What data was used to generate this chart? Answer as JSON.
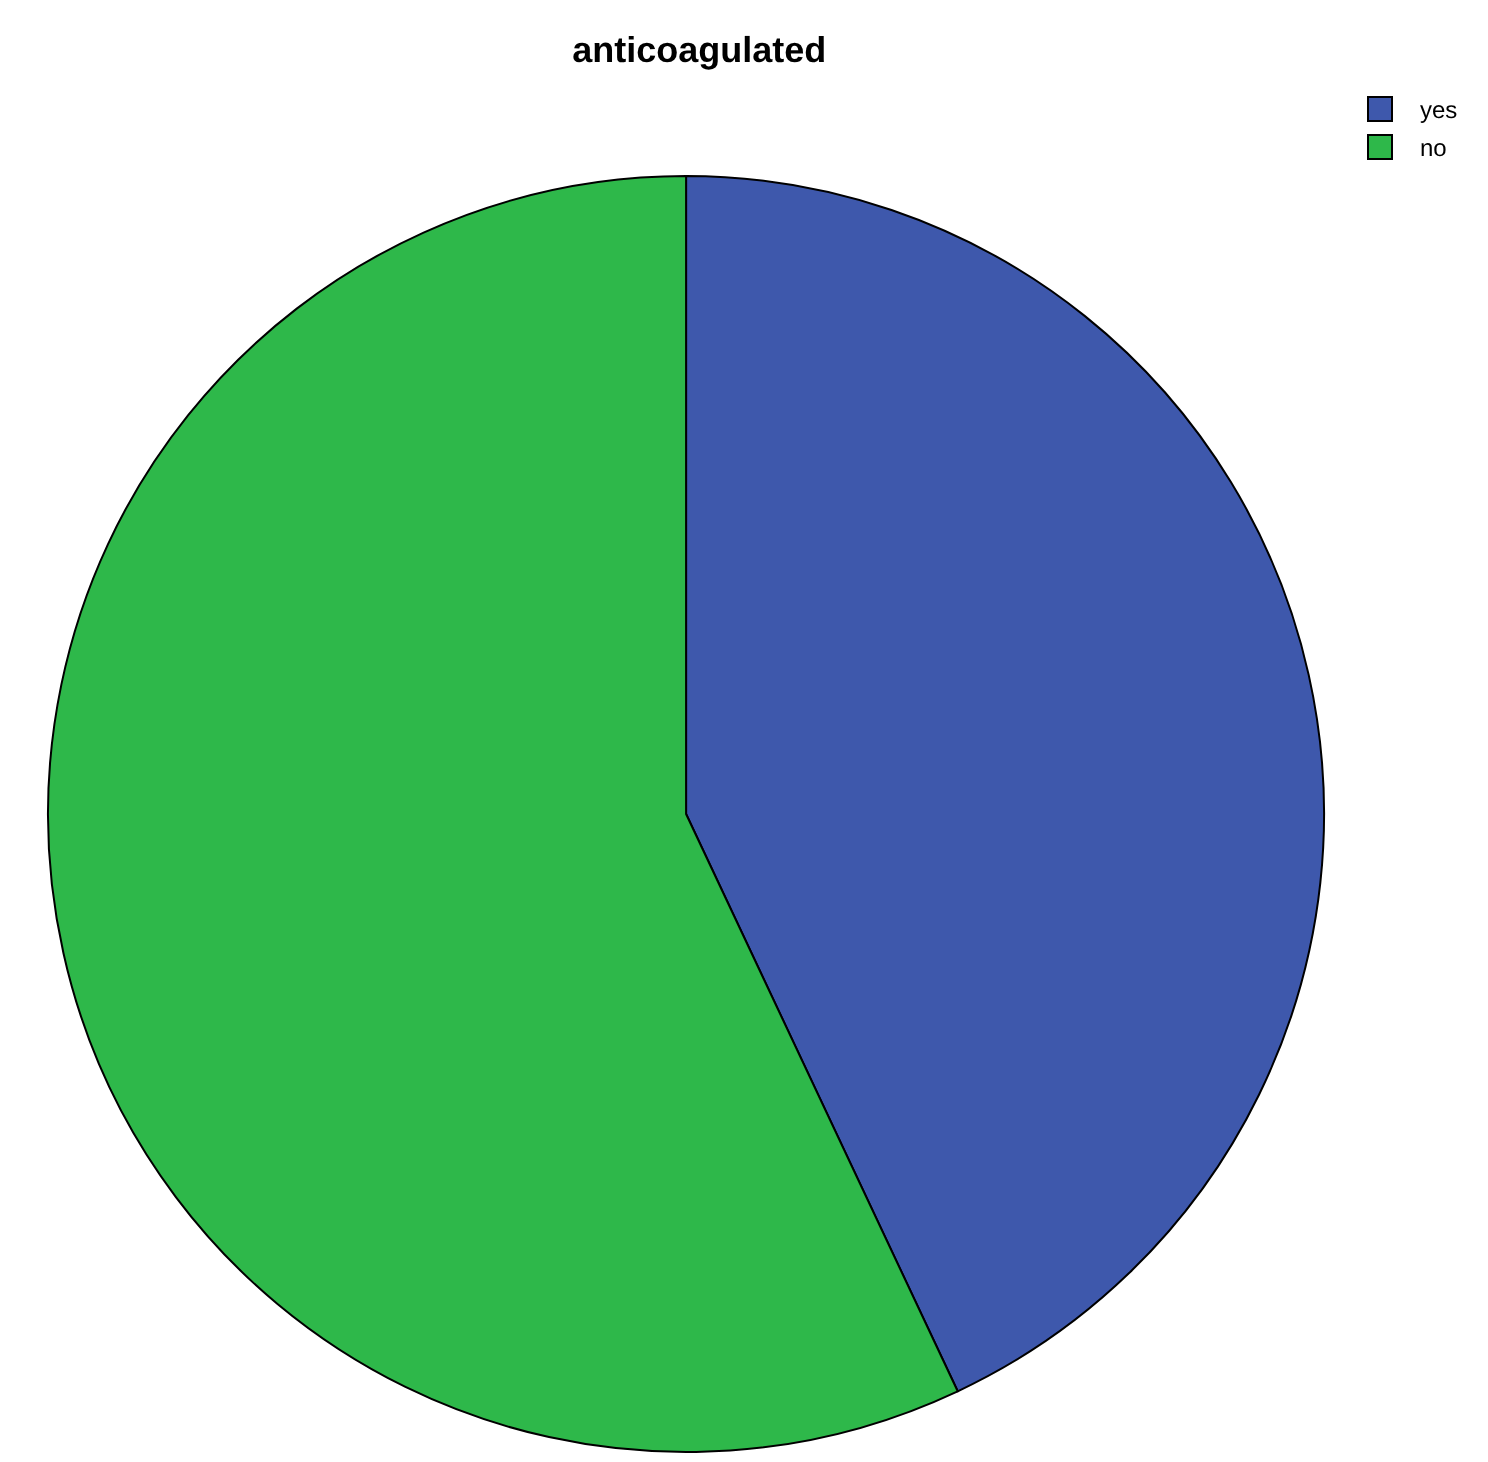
{
  "chart_data": {
    "type": "pie",
    "title": "anticoagulated",
    "categories": [
      "yes",
      "no"
    ],
    "values": [
      43,
      57
    ],
    "colors": [
      "#3e58ac",
      "#2eb84a"
    ],
    "legend": "top right"
  }
}
